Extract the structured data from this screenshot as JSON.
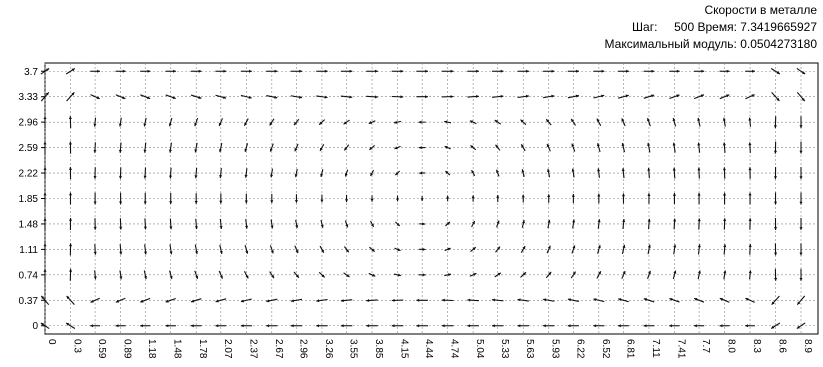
{
  "header": {
    "title": "Скорости в металле",
    "step_label": "Шаг:",
    "step_value": "500",
    "time_label": "Время:",
    "time_value": "7.3419665927",
    "max_label": "Максимальный модуль:",
    "max_value": "0.0504273180"
  },
  "chart_data": {
    "type": "quiver",
    "title": "Скорости в металле",
    "x_ticks": [
      "0",
      "0.3",
      "0.59",
      "0.89",
      "1.18",
      "1.48",
      "1.78",
      "2.07",
      "2.37",
      "2.67",
      "2.96",
      "3.26",
      "3.55",
      "3.85",
      "4.15",
      "4.44",
      "4.74",
      "5.04",
      "5.33",
      "5.63",
      "5.93",
      "6.22",
      "6.52",
      "6.81",
      "7.11",
      "7.41",
      "7.7",
      "8.0",
      "8.3",
      "8.6",
      "8.9"
    ],
    "y_ticks": [
      "3.7",
      "3.33",
      "2.96",
      "2.59",
      "2.22",
      "1.85",
      "1.48",
      "1.11",
      "0.74",
      "0.37",
      "0"
    ],
    "xlim": [
      0,
      9.1
    ],
    "ylim": [
      -0.12,
      3.82
    ],
    "grid": true,
    "max_magnitude": 0.050427318,
    "field_description": "single clockwise circulation cell: rightward flow along top, downward along right wall, leftward along bottom, upward along left wall",
    "colors": {
      "grid": "#888888",
      "arrow": "#111111",
      "axis": "#000000"
    }
  }
}
